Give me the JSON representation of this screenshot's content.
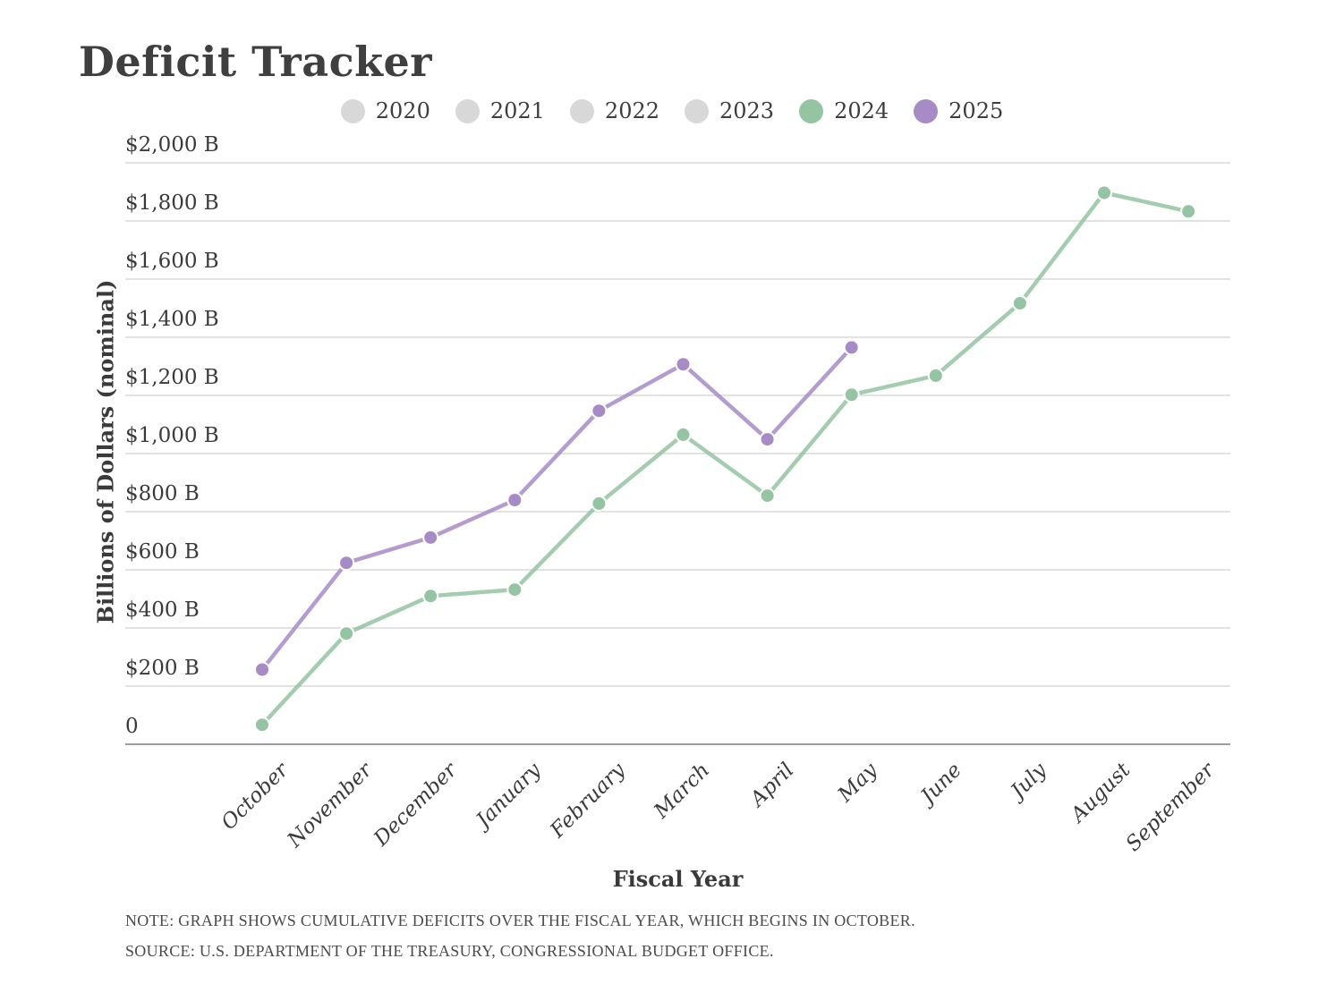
{
  "title": "Deficit Tracker",
  "legend": {
    "items": [
      {
        "label": "2020",
        "color": "#d8d8d8",
        "active": false
      },
      {
        "label": "2021",
        "color": "#d8d8d8",
        "active": false
      },
      {
        "label": "2022",
        "color": "#d8d8d8",
        "active": false
      },
      {
        "label": "2023",
        "color": "#d8d8d8",
        "active": false
      },
      {
        "label": "2024",
        "color": "#94c4a2",
        "active": true
      },
      {
        "label": "2025",
        "color": "#a78bc7",
        "active": true
      }
    ]
  },
  "chart_data": {
    "type": "line",
    "title": "Deficit Tracker",
    "xlabel": "Fiscal Year",
    "ylabel": "Billions of Dollars (nominal)",
    "categories": [
      "October",
      "November",
      "December",
      "January",
      "February",
      "March",
      "April",
      "May",
      "June",
      "July",
      "August",
      "September"
    ],
    "series": [
      {
        "name": "2024",
        "color": "#94c4a2",
        "values": [
          67,
          381,
          510,
          532,
          828,
          1065,
          855,
          1202,
          1268,
          1517,
          1897,
          1833
        ]
      },
      {
        "name": "2025",
        "color": "#a78bc7",
        "values": [
          257,
          624,
          711,
          840,
          1147,
          1307,
          1049,
          1365
        ]
      }
    ],
    "ylim": [
      0,
      2000
    ],
    "ytick_step": 200,
    "ytick_labels": [
      "0",
      "$200 B",
      "$400 B",
      "$600 B",
      "$800 B",
      "$1,000 B",
      "$1,200 B",
      "$1,400 B",
      "$1,600 B",
      "$1,800 B",
      "$2,000 B"
    ],
    "grid": true,
    "legend_position": "top",
    "colors": {
      "grid": "#e2e2e2",
      "zero_axis": "#9e9e9e",
      "inactive": "#d8d8d8"
    }
  },
  "footer": {
    "note": "NOTE: GRAPH SHOWS CUMULATIVE DEFICITS OVER THE FISCAL YEAR, WHICH BEGINS IN OCTOBER.",
    "source": "SOURCE: U.S. DEPARTMENT OF THE TREASURY, CONGRESSIONAL BUDGET OFFICE."
  }
}
